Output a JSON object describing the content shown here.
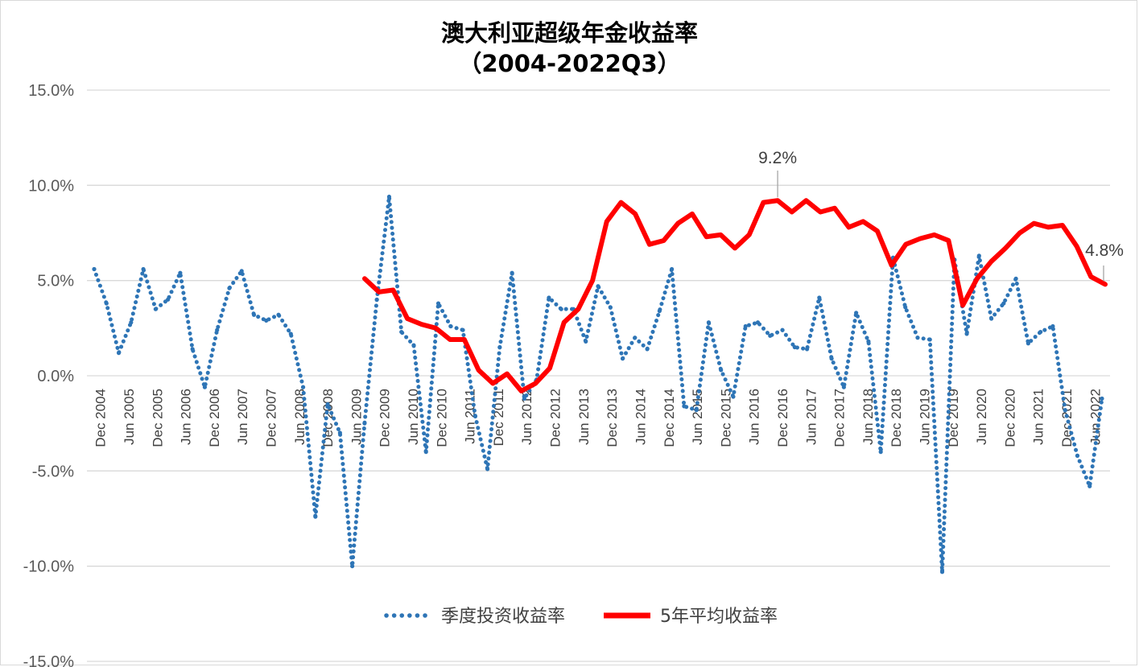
{
  "chart_data": {
    "type": "line",
    "title": "澳大利亚超级年金收益率",
    "subtitle": "（2004-2022Q3）",
    "ylim": [
      -15,
      15
    ],
    "yticks": [
      "15.0%",
      "10.0%",
      "5.0%",
      "0.0%",
      "-5.0%",
      "-10.0%",
      "-15.0%"
    ],
    "ytick_values": [
      15,
      10,
      5,
      0,
      -5,
      -10,
      -15
    ],
    "xtick_labels": [
      "Dec 2004",
      "Jun 2005",
      "Dec 2005",
      "Jun 2006",
      "Dec 2006",
      "Jun 2007",
      "Dec 2007",
      "Jun 2008",
      "Dec 2008",
      "Jun 2009",
      "Dec 2009",
      "Jun 2010",
      "Dec 2010",
      "Jun 2011",
      "Dec 2011",
      "Jun 2012",
      "Dec 2012",
      "Jun 2013",
      "Dec 2013",
      "Jun 2014",
      "Dec 2014",
      "Jun 2015",
      "Dec 2015",
      "Jun 2016",
      "Dec 2016",
      "Jun 2017",
      "Dec 2017",
      "Jun 2018",
      "Dec 2018",
      "Jun 2019",
      "Dec 2019",
      "Jun 2020",
      "Dec 2020",
      "Jun 2021",
      "Dec 2021",
      "Jun 2022"
    ],
    "grid": true,
    "legend_position": "bottom",
    "series": [
      {
        "name": "季度投资收益率",
        "style": "dotted",
        "color": "#2E75B6",
        "values": [
          5.6,
          3.8,
          1.2,
          2.8,
          5.6,
          3.5,
          4.0,
          5.4,
          1.4,
          -0.6,
          2.4,
          4.6,
          5.5,
          3.2,
          2.9,
          3.2,
          2.2,
          -0.6,
          -7.4,
          -1.5,
          -3.0,
          -10.0,
          -2.5,
          4.0,
          9.4,
          2.3,
          1.6,
          -4.0,
          3.8,
          2.6,
          2.4,
          -2.1,
          -4.9,
          1.5,
          5.4,
          -1.2,
          -0.2,
          4.1,
          3.5,
          3.5,
          1.8,
          4.7,
          3.6,
          0.9,
          2.0,
          1.4,
          3.4,
          5.6,
          -1.6,
          -1.8,
          2.8,
          0.3,
          -1.1,
          2.6,
          2.8,
          2.1,
          2.4,
          1.5,
          1.4,
          4.1,
          0.9,
          -0.6,
          3.3,
          1.8,
          -4.0,
          6.2,
          3.6,
          2.0,
          1.9,
          -10.3,
          6.1,
          2.2,
          6.3,
          3.0,
          3.8,
          5.1,
          1.7,
          2.3,
          2.6,
          -1.8,
          -4.2,
          -5.8,
          -1.2
        ]
      },
      {
        "name": "5年平均收益率",
        "style": "solid",
        "color": "#FF0000",
        "values": [
          5.1,
          4.4,
          4.5,
          3.0,
          2.7,
          2.5,
          1.9,
          1.9,
          0.3,
          -0.4,
          0.1,
          -0.8,
          -0.4,
          0.4,
          2.8,
          3.5,
          5.0,
          8.1,
          9.1,
          8.5,
          6.9,
          7.1,
          8.0,
          8.5,
          7.3,
          7.4,
          6.7,
          7.4,
          9.1,
          9.2,
          8.6,
          9.2,
          8.6,
          8.8,
          7.8,
          8.1,
          7.6,
          5.8,
          6.9,
          7.2,
          7.4,
          7.1,
          3.7,
          5.1,
          6.0,
          6.7,
          7.5,
          8.0,
          7.8,
          7.9,
          6.8,
          5.2,
          4.8
        ]
      }
    ],
    "annotations": [
      {
        "text": "9.2%",
        "series": "5年平均收益率",
        "value": 9.2
      },
      {
        "text": "4.8%",
        "series": "5年平均收益率",
        "value": 4.8
      }
    ]
  }
}
